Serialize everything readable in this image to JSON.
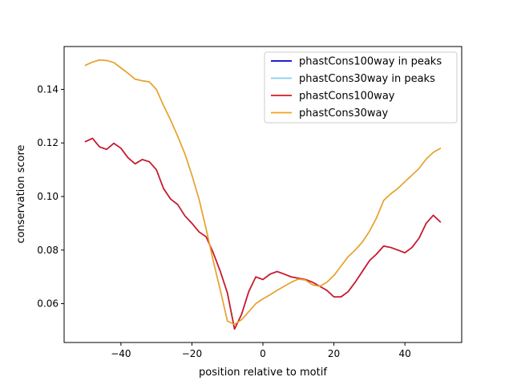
{
  "chart_data": {
    "type": "line",
    "title": "",
    "xlabel": "position relative to motif",
    "ylabel": "conservation score",
    "xlim": [
      -56,
      56
    ],
    "ylim": [
      0.0455,
      0.156
    ],
    "xticks": [
      -40,
      -20,
      0,
      20,
      40
    ],
    "yticks": [
      0.06,
      0.08,
      0.1,
      0.12,
      0.14
    ],
    "xtick_labels": [
      "−40",
      "−20",
      "0",
      "20",
      "40"
    ],
    "ytick_labels": [
      "0.06",
      "0.08",
      "0.10",
      "0.12",
      "0.14"
    ],
    "grid": false,
    "legend_position": "upper right",
    "x": [
      -50,
      -48,
      -46,
      -44,
      -42,
      -40,
      -38,
      -36,
      -34,
      -32,
      -30,
      -28,
      -26,
      -24,
      -22,
      -20,
      -18,
      -16,
      -14,
      -12,
      -10,
      -8,
      -6,
      -4,
      -2,
      0,
      2,
      4,
      6,
      8,
      10,
      12,
      14,
      16,
      18,
      20,
      22,
      24,
      26,
      28,
      30,
      32,
      34,
      36,
      38,
      40,
      42,
      44,
      46,
      48,
      50
    ],
    "series": [
      {
        "name": "phastCons100way in peaks",
        "color": "#0000cd",
        "values": [
          0.1205,
          0.1217,
          0.1185,
          0.1176,
          0.1199,
          0.118,
          0.1145,
          0.1122,
          0.1138,
          0.113,
          0.11,
          0.103,
          0.099,
          0.097,
          0.0928,
          0.09,
          0.0868,
          0.085,
          0.079,
          0.072,
          0.064,
          0.0505,
          0.056,
          0.0645,
          0.07,
          0.069,
          0.071,
          0.072,
          0.071,
          0.07,
          0.0695,
          0.069,
          0.068,
          0.0665,
          0.065,
          0.0625,
          0.0625,
          0.0645,
          0.068,
          0.072,
          0.076,
          0.0785,
          0.0815,
          0.081,
          0.08,
          0.079,
          0.081,
          0.0845,
          0.09,
          0.093,
          0.0905
        ]
      },
      {
        "name": "phastCons30way in peaks",
        "color": "#87ceeb",
        "values": [
          0.149,
          0.1502,
          0.151,
          0.1508,
          0.15,
          0.148,
          0.146,
          0.1438,
          0.1432,
          0.1428,
          0.14,
          0.134,
          0.1285,
          0.1225,
          0.116,
          0.108,
          0.099,
          0.088,
          0.076,
          0.065,
          0.0535,
          0.0523,
          0.054,
          0.057,
          0.06,
          0.0618,
          0.0633,
          0.065,
          0.0665,
          0.068,
          0.0692,
          0.0688,
          0.067,
          0.0665,
          0.068,
          0.0705,
          0.074,
          0.0775,
          0.08,
          0.083,
          0.087,
          0.092,
          0.0985,
          0.101,
          0.103,
          0.1055,
          0.108,
          0.1105,
          0.114,
          0.1165,
          0.118
        ]
      },
      {
        "name": "phastCons100way",
        "color": "#d7191c",
        "values": [
          0.1205,
          0.1217,
          0.1185,
          0.1176,
          0.1199,
          0.118,
          0.1145,
          0.1122,
          0.1138,
          0.113,
          0.11,
          0.103,
          0.099,
          0.097,
          0.0928,
          0.09,
          0.0868,
          0.085,
          0.079,
          0.072,
          0.064,
          0.0505,
          0.056,
          0.0645,
          0.07,
          0.069,
          0.071,
          0.072,
          0.071,
          0.07,
          0.0695,
          0.069,
          0.068,
          0.0665,
          0.065,
          0.0625,
          0.0625,
          0.0645,
          0.068,
          0.072,
          0.076,
          0.0785,
          0.0815,
          0.081,
          0.08,
          0.079,
          0.081,
          0.0845,
          0.09,
          0.093,
          0.0905
        ]
      },
      {
        "name": "phastCons30way",
        "color": "#f0a020",
        "values": [
          0.149,
          0.1502,
          0.151,
          0.1508,
          0.15,
          0.148,
          0.146,
          0.1438,
          0.1432,
          0.1428,
          0.14,
          0.134,
          0.1285,
          0.1225,
          0.116,
          0.108,
          0.099,
          0.088,
          0.076,
          0.065,
          0.0535,
          0.0523,
          0.054,
          0.057,
          0.06,
          0.0618,
          0.0633,
          0.065,
          0.0665,
          0.068,
          0.0692,
          0.0688,
          0.067,
          0.0665,
          0.068,
          0.0705,
          0.074,
          0.0775,
          0.08,
          0.083,
          0.087,
          0.092,
          0.0985,
          0.101,
          0.103,
          0.1055,
          0.108,
          0.1105,
          0.114,
          0.1165,
          0.118
        ]
      }
    ]
  }
}
